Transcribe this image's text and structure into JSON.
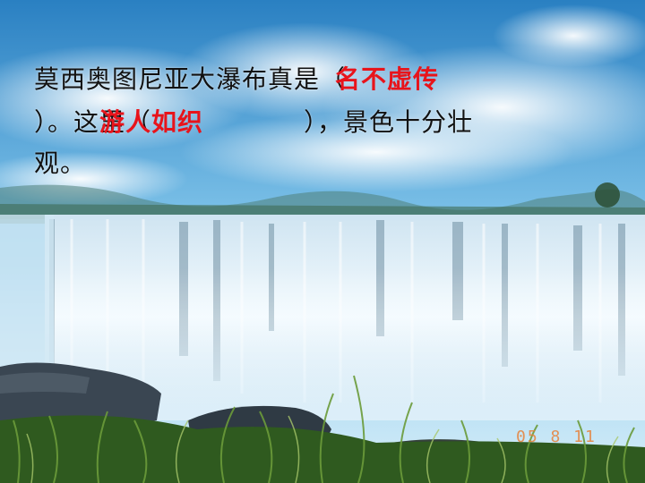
{
  "slide": {
    "line1_text": "莫西奥图尼亚大瀑布真是（",
    "answer1": "名不虚传",
    "line2_open": "）。这里（",
    "answer2": "游人如织",
    "line2_close": "），景色十分壮",
    "line3_text": "观。"
  },
  "photo_stamp": "05 8 11",
  "colors": {
    "answer": "#e8141b",
    "text": "#111111",
    "sky_top": "#2f86c6",
    "sky_bottom": "#cfe9f7",
    "water": "#e8f4fb",
    "grass": "#2f5a1f"
  }
}
